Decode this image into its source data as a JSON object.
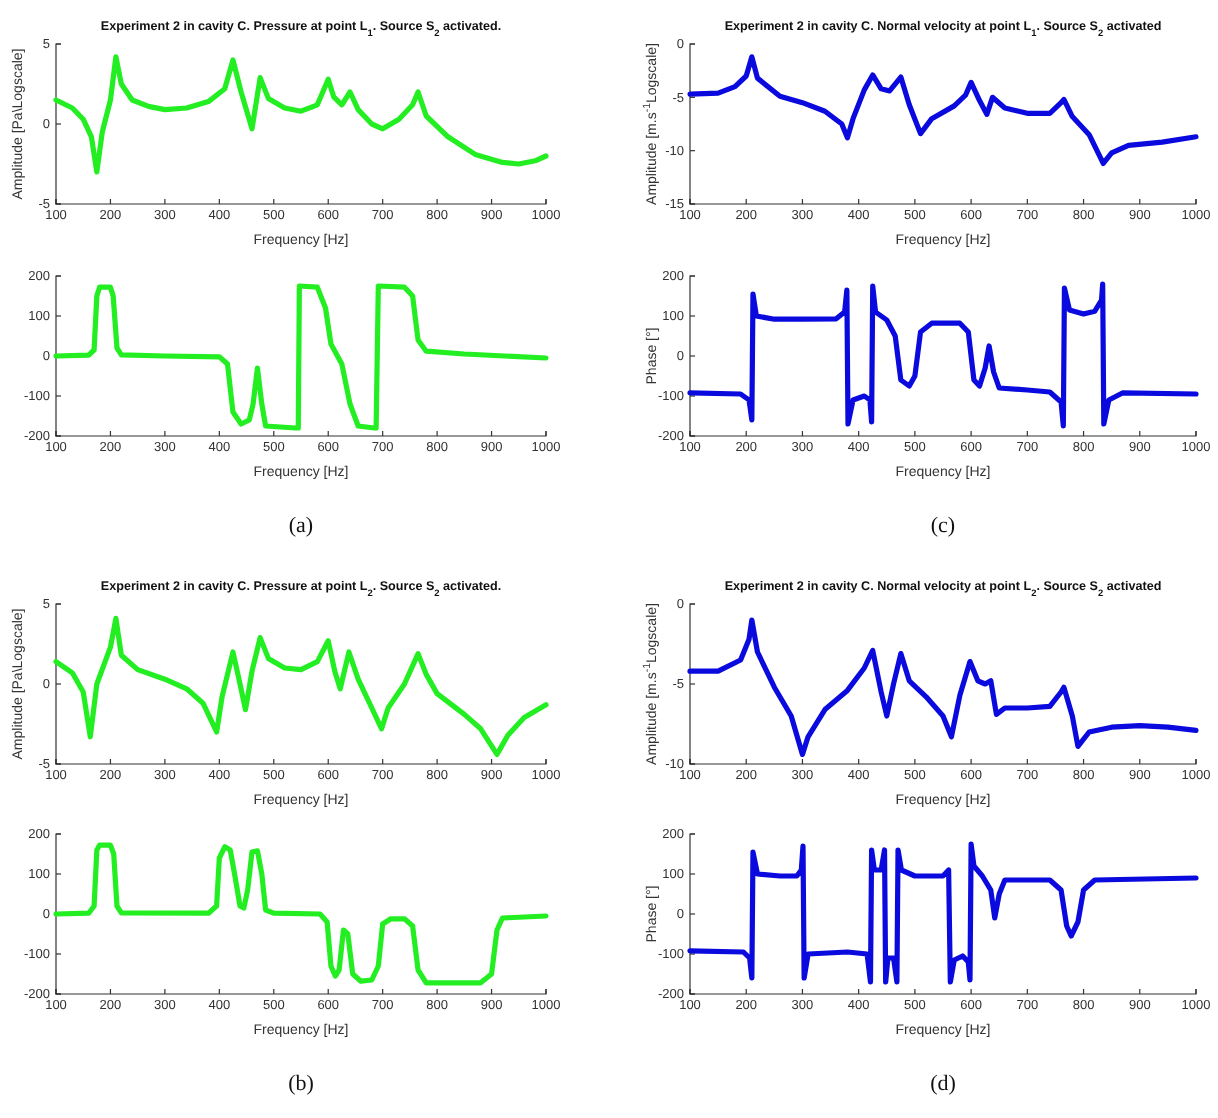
{
  "chart_data": [
    {
      "type": "line",
      "title": "Experiment 2 in cavity C. Pressure at point L$_{1}$. Source S$_{2}$ activated.",
      "xlabel": "Frequency [Hz]",
      "ylabel": "Amplitude [Pa\\Logscale]",
      "xlim": [
        100,
        1000
      ],
      "xticks": [
        100,
        200,
        300,
        400,
        500,
        600,
        700,
        800,
        900,
        1000
      ],
      "ylim": [
        -5,
        5
      ],
      "yticks": [
        -5,
        0,
        5
      ],
      "series": [
        {
          "color": "#22ee22",
          "x": [
            100,
            130,
            150,
            165,
            175,
            185,
            200,
            210,
            220,
            240,
            270,
            300,
            340,
            380,
            410,
            425,
            440,
            460,
            475,
            490,
            520,
            550,
            580,
            600,
            610,
            625,
            640,
            655,
            680,
            700,
            730,
            755,
            765,
            780,
            820,
            870,
            920,
            950,
            980,
            1000
          ],
          "values": [
            1.5,
            1.0,
            0.3,
            -0.8,
            -3,
            -0.5,
            1.5,
            4.2,
            2.5,
            1.5,
            1.1,
            0.9,
            1.0,
            1.4,
            2.2,
            4.0,
            2.0,
            -0.3,
            2.9,
            1.6,
            1.0,
            0.8,
            1.2,
            2.8,
            1.7,
            1.2,
            2.0,
            0.9,
            0.0,
            -0.3,
            0.3,
            1.2,
            2.0,
            0.5,
            -0.8,
            -1.9,
            -2.4,
            -2.5,
            -2.3,
            -2.0
          ]
        }
      ]
    },
    {
      "type": "line",
      "xlabel": "Frequency [Hz]",
      "xlim": [
        100,
        1000
      ],
      "xticks": [
        100,
        200,
        300,
        400,
        500,
        600,
        700,
        800,
        900,
        1000
      ],
      "ylim": [
        -200,
        200
      ],
      "yticks": [
        -200,
        -100,
        0,
        100,
        200
      ],
      "annotations": [
        "(a)"
      ],
      "series": [
        {
          "color": "#22ee22",
          "x": [
            100,
            160,
            170,
            175,
            180,
            200,
            205,
            212,
            220,
            300,
            400,
            415,
            425,
            440,
            455,
            462,
            470,
            478,
            485,
            540,
            545,
            547,
            580,
            595,
            605,
            625,
            640,
            655,
            685,
            688,
            692,
            740,
            755,
            765,
            780,
            850,
            1000
          ],
          "values": [
            0,
            2,
            15,
            150,
            172,
            172,
            150,
            20,
            3,
            0,
            -2,
            -20,
            -140,
            -170,
            -160,
            -120,
            -30,
            -120,
            -175,
            -180,
            -180,
            175,
            172,
            120,
            30,
            -20,
            -120,
            -175,
            -180,
            -180,
            175,
            172,
            150,
            40,
            12,
            5,
            -5
          ]
        }
      ]
    },
    {
      "type": "line",
      "title": "Experiment 2 in cavity C. Normal velocity at point L$_{1}$. Source S$_{2}$ activated",
      "xlabel": "Frequency [Hz]",
      "ylabel": "Amplitude [m.s$^{-1}$Logscale]",
      "xlim": [
        100,
        1000
      ],
      "xticks": [
        100,
        200,
        300,
        400,
        500,
        600,
        700,
        800,
        900,
        1000
      ],
      "ylim": [
        -15,
        0
      ],
      "yticks": [
        -15,
        -10,
        -5,
        0
      ],
      "series": [
        {
          "color": "#0a0ade",
          "x": [
            100,
            150,
            180,
            200,
            210,
            220,
            260,
            300,
            340,
            370,
            380,
            390,
            410,
            425,
            440,
            455,
            475,
            490,
            510,
            530,
            570,
            590,
            600,
            615,
            628,
            638,
            660,
            700,
            740,
            760,
            765,
            780,
            810,
            835,
            850,
            880,
            940,
            1000
          ],
          "values": [
            -4.7,
            -4.6,
            -4.0,
            -3.0,
            -1.2,
            -3.2,
            -4.9,
            -5.5,
            -6.3,
            -7.5,
            -8.8,
            -7.0,
            -4.3,
            -2.9,
            -4.2,
            -4.4,
            -3.1,
            -5.7,
            -8.4,
            -7.0,
            -5.8,
            -4.8,
            -3.6,
            -5.3,
            -6.6,
            -5.0,
            -6.0,
            -6.5,
            -6.5,
            -5.5,
            -5.2,
            -6.8,
            -8.5,
            -11.2,
            -10.2,
            -9.5,
            -9.2,
            -8.7
          ]
        }
      ]
    },
    {
      "type": "line",
      "xlabel": "Frequency [Hz]",
      "ylabel": "Phase [°]",
      "xlim": [
        100,
        1000
      ],
      "xticks": [
        100,
        200,
        300,
        400,
        500,
        600,
        700,
        800,
        900,
        1000
      ],
      "ylim": [
        -200,
        200
      ],
      "yticks": [
        -200,
        -100,
        0,
        100,
        200
      ],
      "annotations": [
        "(c)"
      ],
      "series": [
        {
          "color": "#0a0ade",
          "x": [
            100,
            190,
            205,
            210,
            212,
            218,
            250,
            300,
            360,
            375,
            379,
            381,
            390,
            410,
            420,
            423,
            425,
            430,
            450,
            465,
            475,
            490,
            500,
            510,
            530,
            580,
            595,
            605,
            615,
            625,
            632,
            640,
            650,
            700,
            740,
            760,
            764,
            766,
            775,
            800,
            820,
            832,
            834,
            836,
            845,
            870,
            1000
          ],
          "values": [
            -92,
            -95,
            -110,
            -160,
            155,
            100,
            92,
            92,
            93,
            110,
            165,
            -170,
            -110,
            -100,
            -110,
            -165,
            175,
            110,
            90,
            50,
            -60,
            -75,
            -50,
            60,
            82,
            82,
            60,
            -60,
            -75,
            -30,
            25,
            -40,
            -80,
            -85,
            -90,
            -115,
            -175,
            170,
            115,
            105,
            112,
            140,
            180,
            -170,
            -110,
            -92,
            -95
          ]
        }
      ]
    },
    {
      "type": "line",
      "title": "Experiment 2 in cavity C. Pressure at point L$_{2}$. Source S$_{2}$ activated.",
      "xlabel": "Frequency [Hz]",
      "ylabel": "Amplitude [Pa\\Logscale]",
      "xlim": [
        100,
        1000
      ],
      "xticks": [
        100,
        200,
        300,
        400,
        500,
        600,
        700,
        800,
        900,
        1000
      ],
      "ylim": [
        -5,
        5
      ],
      "yticks": [
        -5,
        0,
        5
      ],
      "series": [
        {
          "color": "#22ee22",
          "x": [
            100,
            130,
            150,
            163,
            175,
            200,
            210,
            220,
            250,
            300,
            340,
            370,
            395,
            405,
            425,
            438,
            448,
            460,
            475,
            490,
            520,
            550,
            580,
            600,
            612,
            622,
            638,
            655,
            680,
            698,
            710,
            740,
            765,
            780,
            800,
            850,
            880,
            910,
            930,
            960,
            1000
          ],
          "values": [
            1.4,
            0.7,
            -0.5,
            -3.3,
            0.0,
            2.3,
            4.1,
            1.8,
            0.9,
            0.3,
            -0.3,
            -1.2,
            -3.0,
            -0.8,
            2.0,
            0.0,
            -1.6,
            0.8,
            2.9,
            1.6,
            1.0,
            0.9,
            1.4,
            2.7,
            0.8,
            -0.3,
            2.0,
            0.3,
            -1.5,
            -2.8,
            -1.5,
            0.0,
            1.9,
            0.6,
            -0.6,
            -1.9,
            -2.8,
            -4.4,
            -3.2,
            -2.1,
            -1.3
          ]
        }
      ]
    },
    {
      "type": "line",
      "xlabel": "Frequency [Hz]",
      "xlim": [
        100,
        1000
      ],
      "xticks": [
        100,
        200,
        300,
        400,
        500,
        600,
        700,
        800,
        900,
        1000
      ],
      "ylim": [
        -200,
        200
      ],
      "yticks": [
        -200,
        -100,
        0,
        100,
        200
      ],
      "annotations": [
        "(b)"
      ],
      "series": [
        {
          "color": "#22ee22",
          "x": [
            100,
            160,
            170,
            175,
            180,
            200,
            206,
            212,
            220,
            380,
            395,
            400,
            410,
            420,
            428,
            438,
            445,
            452,
            460,
            470,
            478,
            485,
            500,
            585,
            598,
            605,
            613,
            620,
            628,
            636,
            645,
            660,
            680,
            692,
            700,
            715,
            740,
            755,
            765,
            780,
            880,
            900,
            910,
            920,
            1000
          ],
          "values": [
            0,
            2,
            20,
            160,
            172,
            172,
            150,
            20,
            3,
            2,
            20,
            140,
            168,
            160,
            100,
            20,
            15,
            60,
            155,
            158,
            100,
            10,
            2,
            0,
            -20,
            -130,
            -155,
            -140,
            -40,
            -50,
            -150,
            -168,
            -165,
            -130,
            -25,
            -12,
            -12,
            -30,
            -140,
            -172,
            -172,
            -150,
            -40,
            -10,
            -5
          ]
        }
      ]
    },
    {
      "type": "line",
      "title": "Experiment 2 in cavity C. Normal velocity at point L$_{2}$. Source S$_{2}$ activated",
      "xlabel": "Frequency [Hz]",
      "ylabel": "Amplitude [m.s$^{-1}$Logscale]",
      "xlim": [
        100,
        1000
      ],
      "xticks": [
        100,
        200,
        300,
        400,
        500,
        600,
        700,
        800,
        900,
        1000
      ],
      "ylim": [
        -10,
        0
      ],
      "yticks": [
        -10,
        -5,
        0
      ],
      "series": [
        {
          "color": "#0a0ade",
          "x": [
            100,
            150,
            190,
            205,
            210,
            220,
            250,
            280,
            300,
            310,
            340,
            380,
            410,
            425,
            440,
            450,
            462,
            475,
            490,
            520,
            550,
            565,
            580,
            598,
            612,
            625,
            635,
            645,
            660,
            700,
            740,
            760,
            765,
            780,
            790,
            810,
            850,
            900,
            950,
            1000
          ],
          "values": [
            -4.2,
            -4.2,
            -3.5,
            -2.2,
            -1.0,
            -3.0,
            -5.2,
            -7.0,
            -9.4,
            -8.3,
            -6.6,
            -5.4,
            -4.0,
            -2.9,
            -5.5,
            -7.0,
            -5.0,
            -3.1,
            -4.8,
            -5.8,
            -7.0,
            -8.3,
            -5.7,
            -3.6,
            -4.8,
            -5.0,
            -4.8,
            -6.9,
            -6.5,
            -6.5,
            -6.4,
            -5.5,
            -5.2,
            -7.0,
            -8.9,
            -8.0,
            -7.7,
            -7.6,
            -7.7,
            -7.9
          ]
        }
      ]
    },
    {
      "type": "line",
      "xlabel": "Frequency [Hz]",
      "ylabel": "Phase [°]",
      "xlim": [
        100,
        1000
      ],
      "xticks": [
        100,
        200,
        300,
        400,
        500,
        600,
        700,
        800,
        900,
        1000
      ],
      "ylim": [
        -200,
        200
      ],
      "yticks": [
        -200,
        -100,
        0,
        100,
        200
      ],
      "annotations": [
        "(d)"
      ],
      "series": [
        {
          "color": "#0a0ade",
          "x": [
            100,
            195,
            206,
            210,
            212,
            220,
            260,
            290,
            298,
            301,
            303,
            310,
            380,
            415,
            421,
            423,
            428,
            440,
            446,
            448,
            452,
            462,
            468,
            470,
            476,
            500,
            550,
            560,
            563,
            570,
            585,
            595,
            598,
            600,
            605,
            620,
            635,
            642,
            650,
            660,
            740,
            760,
            770,
            778,
            790,
            800,
            820,
            1000
          ],
          "values": [
            -92,
            -95,
            -110,
            -160,
            155,
            100,
            95,
            95,
            110,
            170,
            -160,
            -100,
            -95,
            -100,
            -170,
            160,
            110,
            110,
            160,
            -170,
            -110,
            -110,
            -170,
            160,
            110,
            95,
            95,
            110,
            -170,
            -115,
            -105,
            -120,
            -165,
            175,
            120,
            95,
            60,
            -10,
            50,
            85,
            85,
            60,
            -30,
            -55,
            -20,
            60,
            85,
            90
          ]
        }
      ]
    }
  ]
}
